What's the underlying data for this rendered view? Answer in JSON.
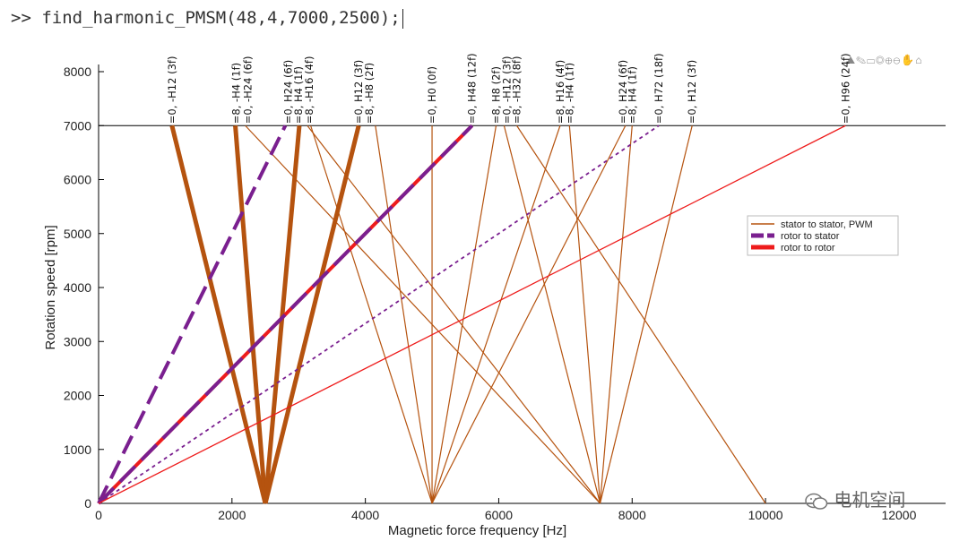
{
  "command": {
    "prompt": ">>",
    "text": "find_harmonic_PMSM(48,4,7000,2500);"
  },
  "toolbar": {
    "icons": "⛰✎▭◎⊕⊖✋⌂"
  },
  "watermark": {
    "text": "电机空间"
  },
  "colors": {
    "stator": "#b5530f",
    "rotor_stator": "#7a1f8f",
    "rotor_rotor": "#ee1c1c",
    "grid": "#000000"
  },
  "chart_data": {
    "type": "line",
    "xlabel": "Magnetic force frequency [Hz]",
    "ylabel": "Rotation speed [rpm]",
    "xlim": [
      0,
      12700
    ],
    "ylim": [
      0,
      8000
    ],
    "xticks": [
      0,
      2000,
      4000,
      6000,
      8000,
      10000,
      12000
    ],
    "yticks": [
      0,
      1000,
      2000,
      3000,
      4000,
      5000,
      6000,
      7000,
      8000
    ],
    "reference_speed": 7000,
    "legend": {
      "position": "right",
      "entries": [
        {
          "label": "stator to stator, PWM",
          "style": "stator"
        },
        {
          "label": "rotor to stator",
          "style": "rotor_stator"
        },
        {
          "label": "rotor to rotor",
          "style": "rotor_rotor"
        }
      ]
    },
    "series": [
      {
        "name": "=0, -H12 (3f)",
        "style": "stator",
        "width": 5,
        "dash": "",
        "x0": 2500,
        "y0": 0,
        "x1": 1100,
        "y1": 7000
      },
      {
        "name": "=0, -H24 (6f)",
        "style": "stator",
        "width": 5,
        "dash": "",
        "x0": 2500,
        "y0": 0,
        "x1": 2050,
        "y1": 7000
      },
      {
        "name": "=0, H24 (6f)",
        "style": "stator",
        "width": 5,
        "dash": "",
        "x0": 2500,
        "y0": 0,
        "x1": 3010,
        "y1": 7000
      },
      {
        "name": "=0, H12 (3f)",
        "style": "stator",
        "width": 5,
        "dash": "",
        "x0": 2500,
        "y0": 0,
        "x1": 3900,
        "y1": 7000
      },
      {
        "name": "=8, -H4 (1f)",
        "style": "stator",
        "width": 1.2,
        "dash": "",
        "x0": 2200,
        "y0": 7000,
        "x1": 7520,
        "y1": 0
      },
      {
        "name": "=8, H4 (1f)",
        "style": "stator",
        "width": 1.2,
        "dash": "",
        "x0": 3130,
        "y0": 7000,
        "x1": 7520,
        "y1": 0
      },
      {
        "name": "=8, -H16 (4f)",
        "style": "stator",
        "width": 1.2,
        "dash": "",
        "x0": 3180,
        "y0": 7000,
        "x1": 5000,
        "y1": 0
      },
      {
        "name": "=8, -H8 (2f)",
        "style": "stator",
        "width": 1.2,
        "dash": "",
        "x0": 4150,
        "y0": 7000,
        "x1": 5000,
        "y1": 0
      },
      {
        "name": "=0, H0 (0f)",
        "style": "stator",
        "width": 1.2,
        "dash": "",
        "x0": 5000,
        "y0": 7000,
        "x1": 5000,
        "y1": 0
      },
      {
        "name": "=8, H8 (2f)",
        "style": "stator",
        "width": 1.2,
        "dash": "",
        "x0": 5960,
        "y0": 7000,
        "x1": 5000,
        "y1": 0
      },
      {
        "name": "=0, -H12 (3f)",
        "style": "stator",
        "width": 1.2,
        "dash": "",
        "x0": 6080,
        "y0": 7000,
        "x1": 7520,
        "y1": 0
      },
      {
        "name": "=8, -H32 (8f)",
        "style": "stator",
        "width": 1.2,
        "dash": "",
        "x0": 6270,
        "y0": 7000,
        "x1": 10000,
        "y1": 0
      },
      {
        "name": "=8, H16 (4f)",
        "style": "stator",
        "width": 1.2,
        "dash": "",
        "x0": 6920,
        "y0": 7000,
        "x1": 5000,
        "y1": 0
      },
      {
        "name": "=8, -H4 (1f)",
        "style": "stator",
        "width": 1.2,
        "dash": "",
        "x0": 7060,
        "y0": 7000,
        "x1": 7520,
        "y1": 0
      },
      {
        "name": "=0, H24 (6f)",
        "style": "stator",
        "width": 1.2,
        "dash": "",
        "x0": 7900,
        "y0": 7000,
        "x1": 5000,
        "y1": 0
      },
      {
        "name": "=8, H4 (1f)",
        "style": "stator",
        "width": 1.2,
        "dash": "",
        "x0": 8000,
        "y0": 7000,
        "x1": 7520,
        "y1": 0
      },
      {
        "name": "=0, H12 (3f)",
        "style": "stator",
        "width": 1.2,
        "dash": "",
        "x0": 8900,
        "y0": 7000,
        "x1": 7520,
        "y1": 0
      },
      {
        "name": "=0, H24 (6f)",
        "style": "rotor_stator",
        "width": 4,
        "dash": "22,9",
        "x0": 0,
        "y0": 0,
        "x1": 2800,
        "y1": 7000
      },
      {
        "name": "=0, H48 (12f)",
        "style": "rotor_rotor",
        "width": 4,
        "dash": "",
        "x0": 0,
        "y0": 0,
        "x1": 5600,
        "y1": 7000
      },
      {
        "name": "=0, H48 (12f) overlay",
        "style": "rotor_stator",
        "width": 4,
        "dash": "24,10",
        "x0": 0,
        "y0": 0,
        "x1": 5600,
        "y1": 7000
      },
      {
        "name": "=0, H72 (18f)",
        "style": "rotor_stator",
        "width": 1.8,
        "dash": "4,4",
        "x0": 0,
        "y0": 0,
        "x1": 8400,
        "y1": 7000
      },
      {
        "name": "=0, H96 (24f)",
        "style": "rotor_rotor",
        "width": 1.3,
        "dash": "",
        "x0": 0,
        "y0": 0,
        "x1": 11200,
        "y1": 7000
      }
    ],
    "top_labels": [
      {
        "text": "=0, -H12 (3f)",
        "x": 1100
      },
      {
        "text": "=8, -H4 (1f)",
        "x": 2060
      },
      {
        "text": "=0, -H24 (6f)",
        "x": 2240
      },
      {
        "text": "=0, H24 (6f)",
        "x": 2840
      },
      {
        "text": "=8, H4 (1f)",
        "x": 3000
      },
      {
        "text": "=8, -H16 (4f)",
        "x": 3160
      },
      {
        "text": "=0, H12 (3f)",
        "x": 3900
      },
      {
        "text": "=8, -H8 (2f)",
        "x": 4060
      },
      {
        "text": "=0, H0 (0f)",
        "x": 5000
      },
      {
        "text": "=0, H48 (12f)",
        "x": 5600
      },
      {
        "text": "=8, H8 (2f)",
        "x": 5960
      },
      {
        "text": "=0, -H12 (3f)",
        "x": 6120
      },
      {
        "text": "=8, -H32 (8f)",
        "x": 6270
      },
      {
        "text": "=8, H16 (4f)",
        "x": 6920
      },
      {
        "text": "=8, -H4 (1f)",
        "x": 7060
      },
      {
        "text": "=0, H24 (6f)",
        "x": 7860
      },
      {
        "text": "=8, H4 (1f)",
        "x": 8000
      },
      {
        "text": "=0, H72 (18f)",
        "x": 8400
      },
      {
        "text": "=0, H12 (3f)",
        "x": 8900
      },
      {
        "text": "=0, H96 (24f)",
        "x": 11200
      }
    ]
  }
}
